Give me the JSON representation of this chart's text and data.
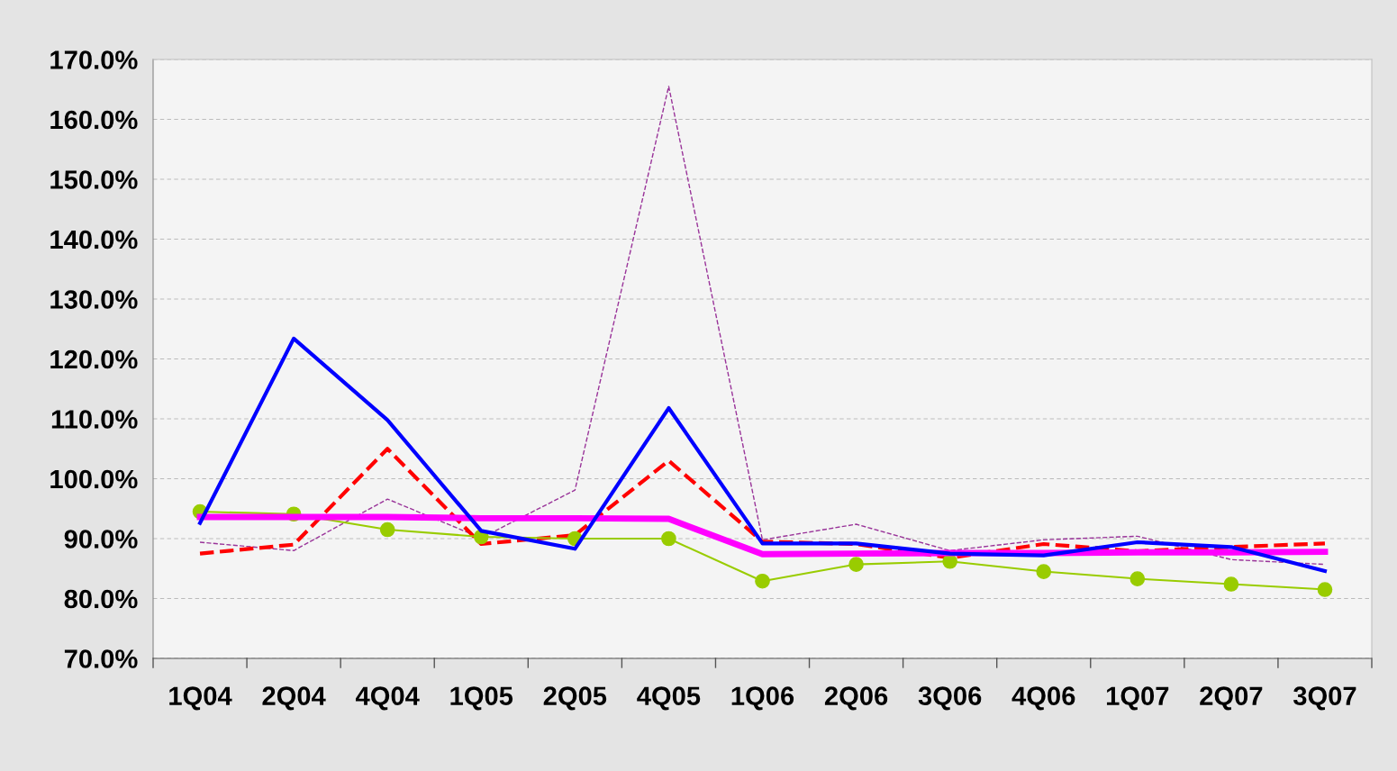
{
  "chart_data": {
    "type": "line",
    "categories": [
      "1Q04",
      "2Q04",
      "4Q04",
      "1Q05",
      "2Q05",
      "4Q05",
      "1Q06",
      "2Q06",
      "3Q06",
      "4Q06",
      "1Q07",
      "2Q07",
      "3Q07"
    ],
    "series": [
      {
        "color": "#993399",
        "line_style": "dashed",
        "marker": "none",
        "values": [
          89.4,
          88.0,
          96.6,
          90.1,
          98.1,
          165.5,
          89.8,
          92.4,
          88.0,
          89.8,
          90.4,
          86.5,
          85.7
        ]
      },
      {
        "color": "#ff0000",
        "line_style": "dashed",
        "marker": "none",
        "values": [
          87.5,
          89.0,
          105.0,
          89.1,
          90.6,
          103.0,
          89.5,
          89.1,
          86.8,
          89.1,
          87.9,
          88.6,
          89.2
        ]
      },
      {
        "color": "#99cc00",
        "line_style": "solid",
        "marker": "circle",
        "values": [
          94.5,
          94.1,
          91.5,
          90.3,
          90.0,
          90.0,
          82.9,
          85.7,
          86.2,
          84.5,
          83.3,
          82.4,
          81.5
        ]
      },
      {
        "color": "#ff00ff",
        "line_style": "solid",
        "marker": "none",
        "values": [
          93.6,
          93.6,
          93.6,
          93.4,
          93.4,
          93.3,
          87.4,
          87.5,
          87.6,
          87.6,
          87.7,
          87.7,
          87.8
        ]
      },
      {
        "color": "#0000ff",
        "line_style": "solid",
        "marker": "none",
        "values": [
          92.6,
          123.4,
          109.8,
          91.3,
          88.3,
          111.8,
          89.2,
          89.2,
          87.5,
          87.2,
          89.4,
          88.6,
          84.6
        ]
      }
    ],
    "ylim": [
      70,
      170
    ],
    "yticks": [
      {
        "value": 70,
        "label": "70.0%"
      },
      {
        "value": 80,
        "label": "80.0%"
      },
      {
        "value": 90,
        "label": "90.0%"
      },
      {
        "value": 100,
        "label": "100.0%"
      },
      {
        "value": 110,
        "label": "110.0%"
      },
      {
        "value": 120,
        "label": "120.0%"
      },
      {
        "value": 130,
        "label": "130.0%"
      },
      {
        "value": 140,
        "label": "140.0%"
      },
      {
        "value": 150,
        "label": "150.0%"
      },
      {
        "value": 160,
        "label": "160.0%"
      },
      {
        "value": 170,
        "label": "170.0%"
      }
    ],
    "grid": "y",
    "legend": false
  }
}
